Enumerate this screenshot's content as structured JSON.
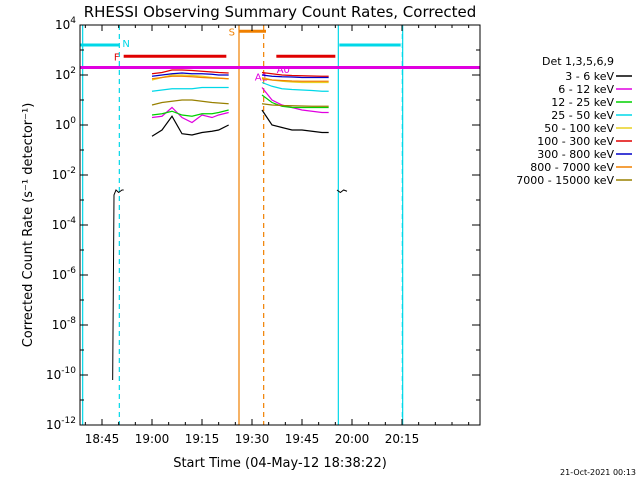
{
  "chart_data": {
    "type": "line",
    "title": "RHESSI Observing Summary Count Rates, Corrected",
    "xlabel": "Start Time (04-May-12 18:38:22)",
    "ylabel": "Corrected Count Rate (s⁻¹ detector⁻¹)",
    "y_scale": "log",
    "ylim_exp": [
      -12,
      4
    ],
    "xlim_min": [
      38.4,
      158.4
    ],
    "x_ticks": [
      {
        "min": 45,
        "label": "18:45"
      },
      {
        "min": 60,
        "label": "19:00"
      },
      {
        "min": 75,
        "label": "19:15"
      },
      {
        "min": 90,
        "label": "19:30"
      },
      {
        "min": 105,
        "label": "19:45"
      },
      {
        "min": 120,
        "label": "20:00"
      },
      {
        "min": 135,
        "label": "20:15"
      }
    ],
    "y_ticks": [
      {
        "exp": 4,
        "base": "10",
        "sup": "4"
      },
      {
        "exp": 2,
        "base": "10",
        "sup": "2"
      },
      {
        "exp": 0,
        "base": "10",
        "sup": "0"
      },
      {
        "exp": -2,
        "base": "10",
        "sup": "-2"
      },
      {
        "exp": -4,
        "base": "10",
        "sup": "-4"
      },
      {
        "exp": -6,
        "base": "10",
        "sup": "-6"
      },
      {
        "exp": -8,
        "base": "10",
        "sup": "-8"
      },
      {
        "exp": -10,
        "base": "10",
        "sup": "-10"
      },
      {
        "exp": -12,
        "base": "10",
        "sup": "-12"
      }
    ],
    "legend_title": "Det 1,3,5,6,9",
    "legend_position": "right",
    "series": [
      {
        "name": "3 - 6 keV",
        "color": "#000000",
        "points": [
          [
            60,
            -0.45
          ],
          [
            63,
            -0.2
          ],
          [
            66,
            0.35
          ],
          [
            69,
            -0.35
          ],
          [
            72,
            -0.4
          ],
          [
            75,
            -0.3
          ],
          [
            78,
            -0.25
          ],
          [
            80,
            -0.2
          ],
          [
            83,
            0.0
          ],
          [
            93,
            0.6
          ],
          [
            96,
            0.0
          ],
          [
            99,
            -0.1
          ],
          [
            102,
            -0.2
          ],
          [
            105,
            -0.2
          ],
          [
            108,
            -0.25
          ],
          [
            111,
            -0.3
          ],
          [
            113,
            -0.3
          ]
        ]
      },
      {
        "name": "6 - 12 keV",
        "color": "#e000e0",
        "points": [
          [
            60,
            0.3
          ],
          [
            63,
            0.35
          ],
          [
            66,
            0.7
          ],
          [
            69,
            0.3
          ],
          [
            72,
            0.1
          ],
          [
            75,
            0.4
          ],
          [
            78,
            0.3
          ],
          [
            80,
            0.4
          ],
          [
            83,
            0.5
          ],
          [
            93,
            1.5
          ],
          [
            96,
            1.0
          ],
          [
            99,
            0.8
          ],
          [
            102,
            0.7
          ],
          [
            105,
            0.6
          ],
          [
            108,
            0.55
          ],
          [
            111,
            0.5
          ],
          [
            113,
            0.5
          ]
        ]
      },
      {
        "name": "12 - 25 keV",
        "color": "#00d000",
        "points": [
          [
            60,
            0.4
          ],
          [
            63,
            0.45
          ],
          [
            66,
            0.55
          ],
          [
            69,
            0.4
          ],
          [
            72,
            0.35
          ],
          [
            75,
            0.45
          ],
          [
            78,
            0.45
          ],
          [
            80,
            0.5
          ],
          [
            83,
            0.6
          ],
          [
            93,
            1.2
          ],
          [
            96,
            0.9
          ],
          [
            99,
            0.75
          ],
          [
            102,
            0.7
          ],
          [
            105,
            0.7
          ],
          [
            108,
            0.7
          ],
          [
            111,
            0.7
          ],
          [
            113,
            0.7
          ]
        ]
      },
      {
        "name": "25 - 50 keV",
        "color": "#00d8e8",
        "points": [
          [
            60,
            1.35
          ],
          [
            63,
            1.4
          ],
          [
            66,
            1.45
          ],
          [
            69,
            1.45
          ],
          [
            72,
            1.45
          ],
          [
            75,
            1.5
          ],
          [
            78,
            1.5
          ],
          [
            80,
            1.5
          ],
          [
            83,
            1.5
          ],
          [
            93,
            1.7
          ],
          [
            96,
            1.55
          ],
          [
            99,
            1.45
          ],
          [
            102,
            1.42
          ],
          [
            105,
            1.4
          ],
          [
            108,
            1.38
          ],
          [
            111,
            1.35
          ],
          [
            113,
            1.35
          ]
        ]
      },
      {
        "name": "50 - 100 keV",
        "color": "#e8d020",
        "points": [
          [
            60,
            1.8
          ],
          [
            63,
            1.9
          ],
          [
            66,
            2.0
          ],
          [
            69,
            2.0
          ],
          [
            72,
            1.98
          ],
          [
            75,
            1.95
          ],
          [
            78,
            1.9
          ],
          [
            80,
            1.88
          ],
          [
            83,
            1.85
          ],
          [
            93,
            1.9
          ],
          [
            96,
            1.8
          ],
          [
            99,
            1.75
          ],
          [
            102,
            1.72
          ],
          [
            105,
            1.7
          ],
          [
            108,
            1.7
          ],
          [
            111,
            1.7
          ],
          [
            113,
            1.7
          ]
        ]
      },
      {
        "name": "100 - 300 keV",
        "color": "#e00000",
        "points": [
          [
            60,
            2.05
          ],
          [
            63,
            2.1
          ],
          [
            66,
            2.2
          ],
          [
            69,
            2.2
          ],
          [
            72,
            2.18
          ],
          [
            75,
            2.15
          ],
          [
            78,
            2.12
          ],
          [
            80,
            2.1
          ],
          [
            83,
            2.08
          ],
          [
            93,
            2.1
          ],
          [
            96,
            2.05
          ],
          [
            99,
            2.0
          ],
          [
            102,
            1.98
          ],
          [
            105,
            1.97
          ],
          [
            108,
            1.96
          ],
          [
            111,
            1.95
          ],
          [
            113,
            1.95
          ]
        ]
      },
      {
        "name": "300 - 800 keV",
        "color": "#0000c8",
        "points": [
          [
            60,
            1.95
          ],
          [
            63,
            2.0
          ],
          [
            66,
            2.05
          ],
          [
            69,
            2.08
          ],
          [
            72,
            2.05
          ],
          [
            75,
            2.05
          ],
          [
            78,
            2.03
          ],
          [
            80,
            2.0
          ],
          [
            83,
            2.0
          ],
          [
            93,
            2.0
          ],
          [
            96,
            1.95
          ],
          [
            99,
            1.93
          ],
          [
            102,
            1.92
          ],
          [
            105,
            1.9
          ],
          [
            108,
            1.9
          ],
          [
            111,
            1.9
          ],
          [
            113,
            1.9
          ]
        ]
      },
      {
        "name": "800 - 7000 keV",
        "color": "#f08000",
        "points": [
          [
            60,
            1.85
          ],
          [
            63,
            1.9
          ],
          [
            66,
            1.95
          ],
          [
            69,
            1.95
          ],
          [
            72,
            1.93
          ],
          [
            75,
            1.9
          ],
          [
            78,
            1.88
          ],
          [
            80,
            1.87
          ],
          [
            83,
            1.85
          ],
          [
            93,
            1.85
          ],
          [
            96,
            1.8
          ],
          [
            99,
            1.78
          ],
          [
            102,
            1.76
          ],
          [
            105,
            1.75
          ],
          [
            108,
            1.75
          ],
          [
            111,
            1.75
          ],
          [
            113,
            1.75
          ]
        ]
      },
      {
        "name": "7000 - 15000 keV",
        "color": "#988000",
        "points": [
          [
            60,
            0.8
          ],
          [
            63,
            0.9
          ],
          [
            66,
            0.95
          ],
          [
            69,
            1.0
          ],
          [
            72,
            1.0
          ],
          [
            75,
            0.95
          ],
          [
            78,
            0.9
          ],
          [
            80,
            0.88
          ],
          [
            83,
            0.85
          ],
          [
            93,
            0.85
          ],
          [
            96,
            0.8
          ],
          [
            99,
            0.78
          ],
          [
            102,
            0.77
          ],
          [
            105,
            0.76
          ],
          [
            108,
            0.75
          ],
          [
            111,
            0.75
          ],
          [
            113,
            0.75
          ]
        ]
      }
    ],
    "annotations": {
      "cyan_lines_min": [
        39.2,
        115.9,
        135.2
      ],
      "cyan_dashed_min": [
        50.2,
        135.1
      ],
      "orange_lines_min": [
        86.1
      ],
      "orange_dashed_min": [
        93.5
      ],
      "bars": [
        {
          "label": "N",
          "color": "#00d8e8",
          "from": 38.4,
          "to": 50.2,
          "exp": 3.2
        },
        {
          "label": "",
          "color": "#00d8e8",
          "from": 116.2,
          "to": 134.6,
          "exp": 3.2
        },
        {
          "label": "F",
          "color": "#e00000",
          "from": 51.5,
          "to": 82.3,
          "exp": 2.75
        },
        {
          "label": "",
          "color": "#e00000",
          "from": 97.3,
          "to": 115.0,
          "exp": 2.75
        },
        {
          "label": "S",
          "color": "#f08000",
          "from": 86.1,
          "to": 94.2,
          "exp": 3.75
        },
        {
          "label": "",
          "color": "#e000e0",
          "from": 38.4,
          "to": 158.4,
          "exp": 2.3
        }
      ],
      "marker_labels": [
        {
          "label": "A1",
          "color": "#e000e0",
          "min": 92.8,
          "exp": 1.95
        },
        {
          "label": "A0",
          "color": "#e000e0",
          "min": 99.4,
          "exp": 2.25
        }
      ]
    }
  },
  "footer": {
    "date_stamp": "21-Oct-2021 00:13"
  }
}
